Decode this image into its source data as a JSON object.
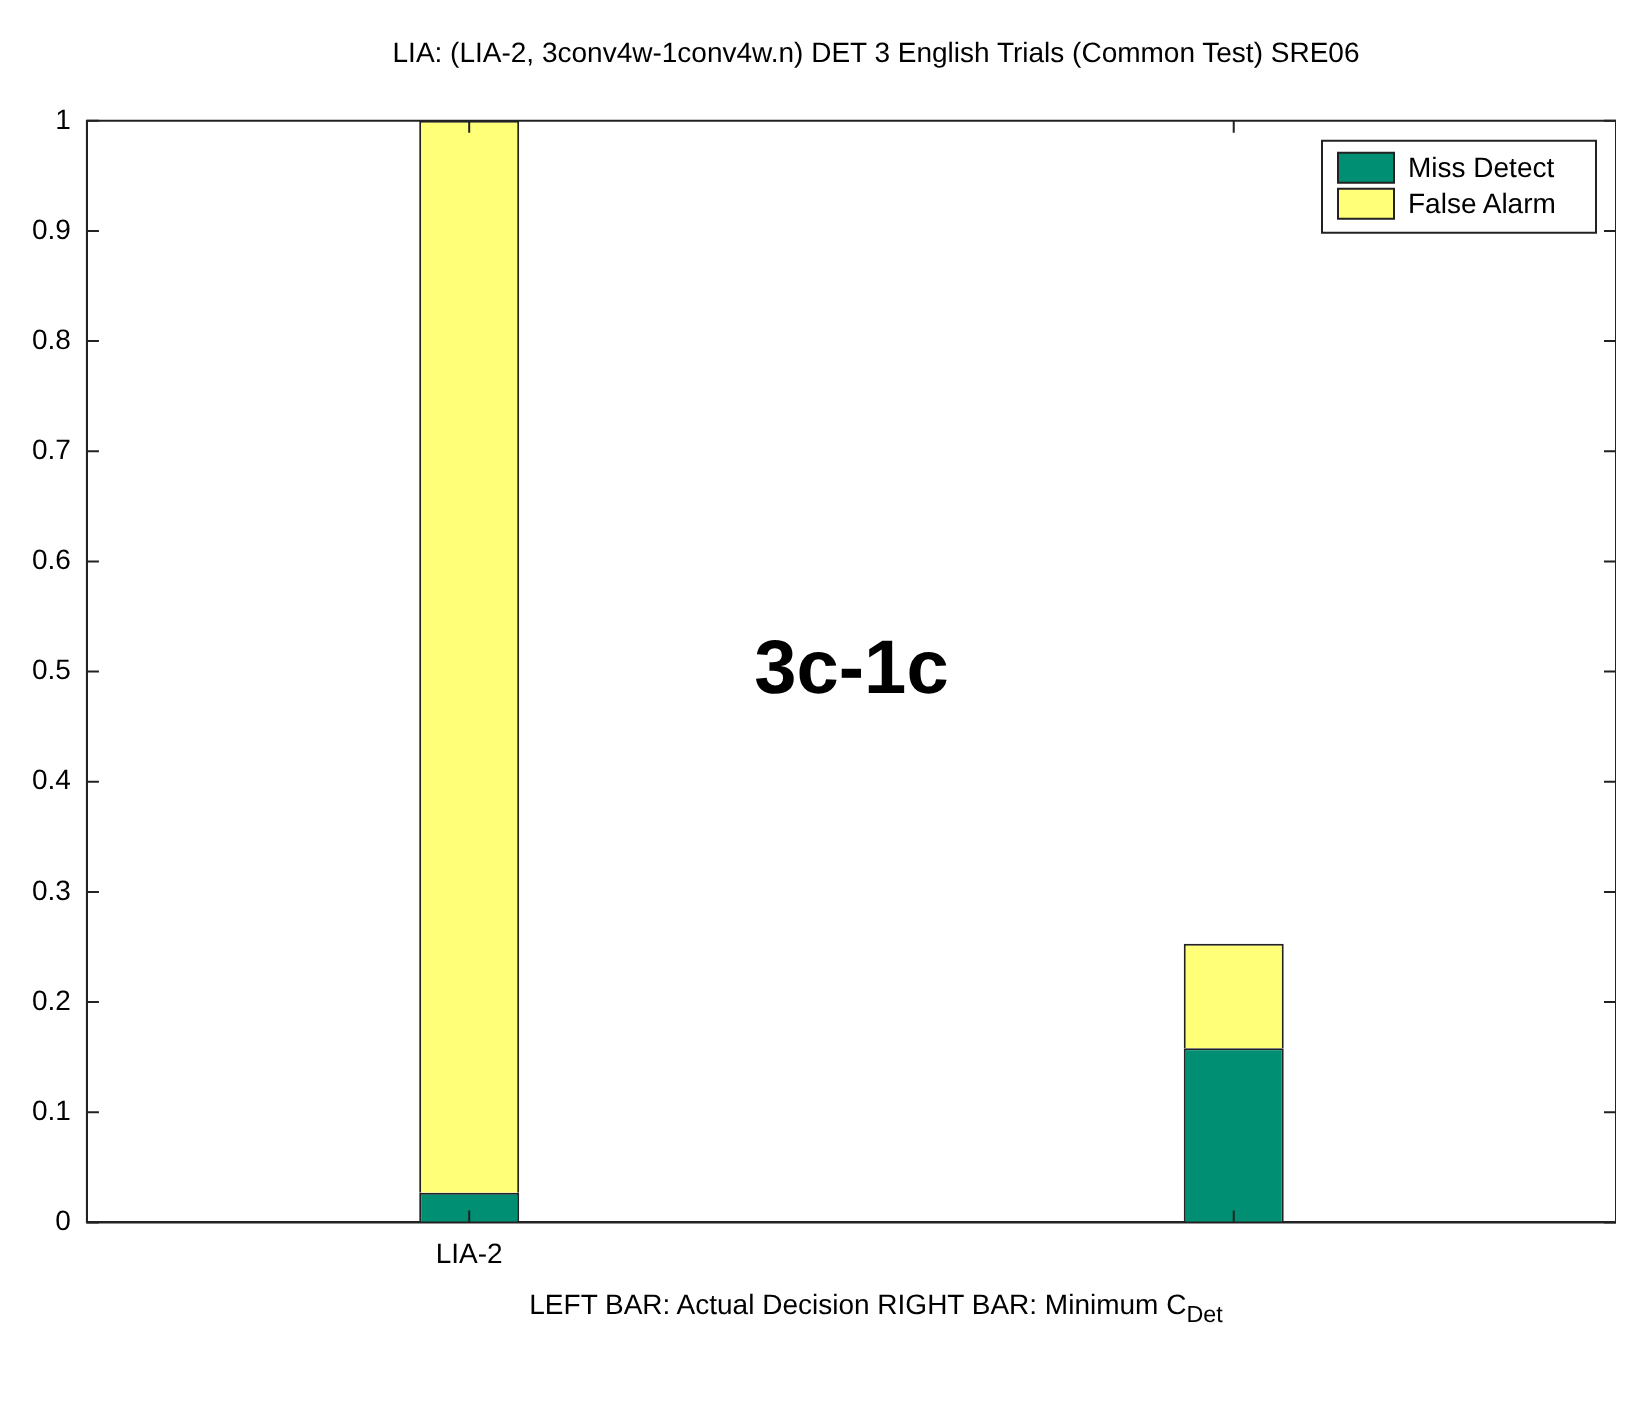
{
  "chart_data": {
    "type": "bar",
    "title": "LIA: (LIA-2, 3conv4w-1conv4w.n) DET 3 English Trials (Common Test) SRE06",
    "xlabel": "LEFT BAR: Actual Decision     RIGHT BAR: Minimum C$_{Det}$",
    "categories": [
      "LIA-2",
      null
    ],
    "stacked": true,
    "series": [
      {
        "name": "Miss Detect",
        "color": "#008f72",
        "values": [
          0.027,
          0.158
        ]
      },
      {
        "name": "False Alarm",
        "color": "#ffff78",
        "values": [
          0.973,
          0.095
        ]
      }
    ],
    "ylim": [
      0,
      1
    ],
    "yticks": [
      0,
      0.1,
      0.2,
      0.3,
      0.4,
      0.5,
      0.6,
      0.7,
      0.8,
      0.9,
      1
    ],
    "grid": false,
    "legend": "top right",
    "annotations": [
      "3c-1c"
    ]
  }
}
